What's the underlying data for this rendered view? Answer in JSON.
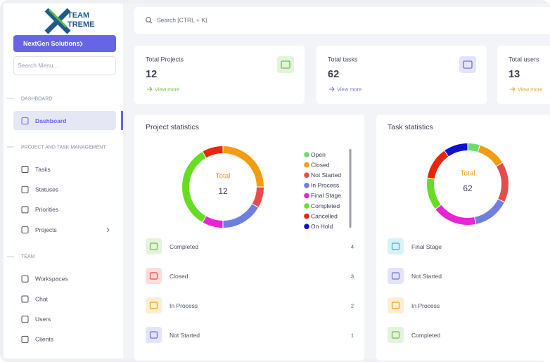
{
  "logo": {
    "line1": "TEAM",
    "line2": "TREME"
  },
  "workspace_button": "NextGen Solutions",
  "menu_search_placeholder": "Search Menu...",
  "menu": [
    {
      "section": "DASHBOARD",
      "items": [
        "Dashboard"
      ]
    },
    {
      "section": "PROJECT AND TASK MANAGEMENT",
      "items": [
        "Tasks",
        "Statuses",
        "Priorities",
        "Projects"
      ]
    },
    {
      "section": "TEAM",
      "items": [
        "Workspaces",
        "Chat",
        "Users",
        "Clients"
      ]
    }
  ],
  "search_placeholder": "Search [CTRL + K]",
  "stat_cards": [
    {
      "label": "Total Projects",
      "value": 12,
      "link": "View more",
      "color": "#6cbf3c"
    },
    {
      "label": "Total tasks",
      "value": 62,
      "link": "View more",
      "color": "#6c6ce0"
    },
    {
      "label": "Total users",
      "value": 13,
      "link": "View more",
      "color": "#e8a317"
    }
  ],
  "chart_data": [
    {
      "type": "donut",
      "title": "Project statistics",
      "categories": [
        "Open",
        "Closed",
        "Not Started",
        "In Process",
        "Final Stage",
        "Completed",
        "Cancelled",
        "On Hold"
      ],
      "colors": [
        "#6bdc6b",
        "#f39c12",
        "#e74c4c",
        "#6f7fe0",
        "#e626d6",
        "#66dd22",
        "#e8260d",
        "#1010d0"
      ],
      "values": [
        0,
        3,
        1,
        2,
        1,
        4,
        1,
        0
      ],
      "center_label": "Total",
      "center_value": 12,
      "legend": true
    },
    {
      "type": "donut",
      "title": "Task statistics",
      "categories": [
        "Open",
        "Closed",
        "Not Started",
        "In Process",
        "Final Stage",
        "Completed",
        "Cancelled",
        "On Hold"
      ],
      "colors": [
        "#6bdc6b",
        "#f39c12",
        "#e74c4c",
        "#6f7fe0",
        "#e626d6",
        "#66dd22",
        "#e8260d",
        "#1010d0"
      ],
      "values": [
        3,
        7,
        10,
        9,
        11,
        8,
        8,
        6
      ],
      "center_label": "Total",
      "center_value": 62,
      "legend": false
    }
  ],
  "status_lists": [
    {
      "items": [
        {
          "label": "Completed",
          "count": 4,
          "color": "#6cbf3c"
        },
        {
          "label": "Closed",
          "count": 3,
          "color": "#e8463c"
        },
        {
          "label": "In Process",
          "count": 2,
          "color": "#e8a317"
        },
        {
          "label": "Not Started",
          "count": 1,
          "color": "#6c6ce0"
        }
      ]
    },
    {
      "items": [
        {
          "label": "Final Stage",
          "color": "#22b8d8"
        },
        {
          "label": "Not Started",
          "color": "#6c6ce0"
        },
        {
          "label": "In Process",
          "color": "#e8a317"
        },
        {
          "label": "Completed",
          "color": "#6cbf3c"
        }
      ]
    }
  ]
}
